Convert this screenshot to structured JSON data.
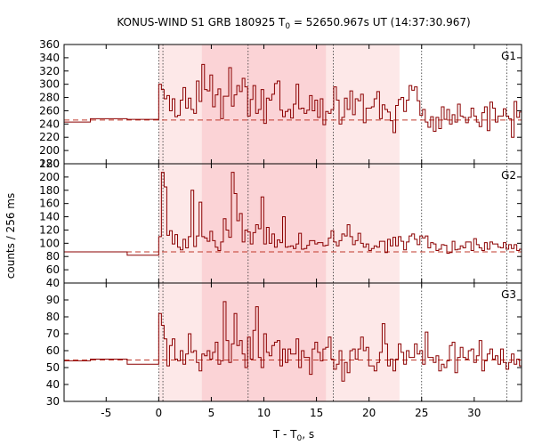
{
  "chart_data": {
    "type": "line",
    "title_prefix": "KONUS-WIND S1 GRB 180925 T",
    "title_sub": "0",
    "title_suffix": " = 52650.967s UT (14:37:30.967)",
    "xlabel_prefix": "T - T",
    "xlabel_sub": "0",
    "xlabel_suffix": ", s",
    "ylabel": "counts / 256 ms",
    "xlim": [
      -9,
      34.5
    ],
    "x_ticks": [
      -5,
      0,
      5,
      10,
      15,
      20,
      25,
      30
    ],
    "shaded_regions": [
      {
        "x0": 0.0,
        "x1": 22.9,
        "level": "light"
      },
      {
        "x0": 4.1,
        "x1": 15.9,
        "level": "dark"
      }
    ],
    "vertical_markers": [
      0.0,
      0.4,
      8.5,
      16.6,
      25.0,
      33.1
    ],
    "colors": {
      "trace": "#8b0000",
      "background": "#c0392b",
      "shade_light": "#fde8e8",
      "shade_dark": "#fbd3d6",
      "marker": "#333333"
    },
    "panels": [
      {
        "name": "G1",
        "ylim": [
          180,
          360
        ],
        "y_ticks": [
          180,
          200,
          220,
          240,
          260,
          280,
          300,
          320,
          340,
          360
        ],
        "background_level": 246,
        "pre_steps": [
          [
            -9,
            243
          ],
          [
            -6.5,
            248
          ],
          [
            -3,
            247
          ],
          [
            0,
            247
          ]
        ],
        "values": [
          300,
          292,
          278,
          283,
          260,
          278,
          251,
          253,
          276,
          295,
          264,
          279,
          262,
          256,
          305,
          274,
          330,
          292,
          290,
          314,
          266,
          284,
          293,
          248,
          282,
          282,
          325,
          267,
          284,
          298,
          289,
          309,
          296,
          252,
          277,
          298,
          256,
          262,
          292,
          241,
          279,
          276,
          285,
          301,
          305,
          261,
          251,
          259,
          262,
          249,
          270,
          300,
          263,
          264,
          256,
          261,
          283,
          260,
          276,
          250,
          278,
          239,
          259,
          256,
          262,
          296,
          276,
          240,
          250,
          279,
          262,
          290,
          254,
          278,
          275,
          285,
          242,
          264,
          264,
          266,
          278,
          289,
          248,
          269,
          262,
          258,
          245,
          227,
          268,
          277,
          280,
          259,
          276,
          298,
          291,
          296,
          275,
          253,
          262,
          243,
          235,
          251,
          229,
          250,
          233,
          266,
          247,
          262,
          240,
          254,
          243,
          270,
          252,
          250,
          242,
          250,
          264,
          252,
          243,
          236,
          257,
          266,
          230,
          273,
          264,
          243,
          252,
          252,
          263,
          252,
          248,
          220,
          274,
          250,
          258,
          241,
          233,
          256,
          240,
          264
        ]
      },
      {
        "name": "G2",
        "ylim": [
          40,
          220
        ],
        "y_ticks": [
          40,
          60,
          80,
          100,
          120,
          140,
          160,
          180,
          200,
          220
        ],
        "background_level": 87,
        "pre_steps": [
          [
            -9,
            87
          ],
          [
            -6.5,
            87
          ],
          [
            -3,
            82
          ],
          [
            0,
            82
          ]
        ],
        "values": [
          110,
          207,
          185,
          112,
          119,
          99,
          113,
          94,
          90,
          106,
          93,
          110,
          180,
          95,
          111,
          162,
          110,
          108,
          103,
          118,
          104,
          94,
          89,
          102,
          137,
          120,
          109,
          207,
          175,
          134,
          145,
          102,
          120,
          117,
          99,
          116,
          128,
          122,
          170,
          99,
          124,
          100,
          114,
          94,
          105,
          101,
          140,
          94,
          95,
          96,
          92,
          99,
          115,
          91,
          92,
          97,
          104,
          104,
          99,
          101,
          101,
          96,
          97,
          108,
          119,
          102,
          96,
          104,
          114,
          111,
          128,
          110,
          98,
          104,
          115,
          100,
          94,
          99,
          89,
          92,
          96,
          94,
          103,
          103,
          86,
          106,
          96,
          109,
          96,
          110,
          103,
          90,
          102,
          111,
          114,
          106,
          98,
          111,
          108,
          111,
          93,
          101,
          99,
          89,
          91,
          98,
          97,
          85,
          86,
          103,
          90,
          91,
          96,
          93,
          102,
          102,
          89,
          107,
          98,
          93,
          89,
          101,
          91,
          102,
          99,
          99,
          94,
          93,
          101,
          91,
          98,
          92,
          98,
          89,
          91,
          98,
          83,
          98,
          92,
          99
        ]
      },
      {
        "name": "G3",
        "ylim": [
          30,
          100
        ],
        "y_ticks": [
          30,
          40,
          50,
          60,
          70,
          80,
          90
        ],
        "background_level": 54.5,
        "pre_steps": [
          [
            -9,
            54
          ],
          [
            -6.5,
            55
          ],
          [
            -3,
            52
          ],
          [
            0,
            52
          ]
        ],
        "values": [
          82,
          75,
          67,
          51,
          63,
          67,
          55,
          54,
          60,
          52,
          58,
          70,
          59,
          60,
          53,
          48,
          58,
          57,
          60,
          55,
          59,
          65,
          52,
          54,
          89,
          66,
          53,
          64,
          82,
          63,
          66,
          58,
          50,
          68,
          55,
          72,
          86,
          56,
          50,
          70,
          59,
          57,
          63,
          65,
          66,
          51,
          61,
          53,
          61,
          58,
          58,
          67,
          50,
          60,
          56,
          56,
          46,
          61,
          65,
          59,
          54,
          61,
          62,
          68,
          55,
          49,
          52,
          60,
          42,
          53,
          47,
          60,
          61,
          55,
          61,
          68,
          60,
          62,
          51,
          51,
          48,
          53,
          59,
          76,
          64,
          51,
          55,
          48,
          55,
          64,
          59,
          52,
          60,
          56,
          56,
          64,
          58,
          60,
          52,
          71,
          56,
          56,
          53,
          57,
          48,
          52,
          50,
          54,
          63,
          65,
          47,
          56,
          62,
          56,
          55,
          60,
          61,
          53,
          57,
          66,
          48,
          54,
          58,
          61,
          55,
          57,
          52,
          61,
          53,
          49,
          53,
          58,
          52,
          55,
          51,
          48,
          55,
          43,
          53,
          57
        ]
      }
    ]
  }
}
